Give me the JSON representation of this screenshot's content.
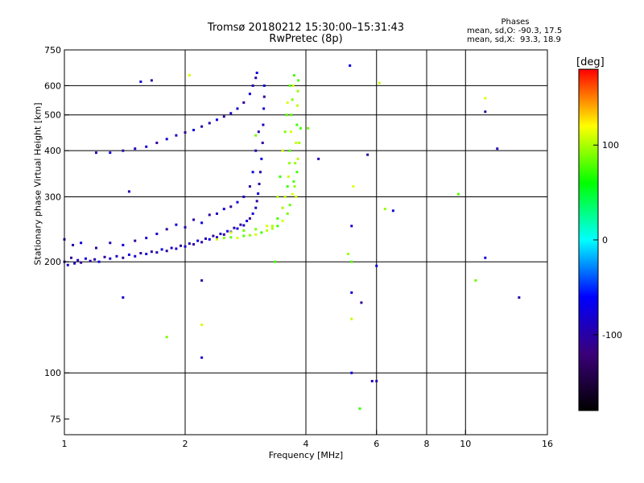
{
  "chart_data": {
    "type": "scatter",
    "title": "Tromsø 20180212 15:30:00–15:31:43",
    "subtitle": "RwPretec (8p)",
    "xlabel": "Frequency [MHz]",
    "ylabel": "Stationary phase Virtual Height [km]",
    "x_scale": "log",
    "y_scale": "log",
    "xlim": [
      1,
      16
    ],
    "ylim": [
      68,
      750
    ],
    "x_ticks": [
      1,
      2,
      4,
      6,
      8,
      10,
      16
    ],
    "y_ticks": [
      75,
      100,
      200,
      300,
      400,
      500,
      600,
      750
    ],
    "x_gridlines": [
      2,
      4,
      6,
      8,
      10
    ],
    "y_gridlines": [
      100,
      200,
      300,
      400,
      500,
      600
    ],
    "grid": true,
    "color_variable": "phase",
    "colorbar": {
      "label": "[deg]",
      "range": [
        -180,
        180
      ],
      "ticks": [
        100,
        0,
        -100
      ],
      "colors": [
        "#000000",
        "#3a007a",
        "#0000ff",
        "#00ffff",
        "#00ff00",
        "#ffff00",
        "#ff0000"
      ]
    },
    "phases_box": {
      "header": "Phases",
      "line_o": "mean, sd,O: -90.3, 17.5",
      "line_x": "mean, sd,X:  93.3, 18.9"
    },
    "series": [
      {
        "name": "O",
        "mean_phase": -90.3,
        "sd_phase": 17.5,
        "points": [
          [
            1.0,
            200
          ],
          [
            1.02,
            196
          ],
          [
            1.04,
            205
          ],
          [
            1.06,
            198
          ],
          [
            1.08,
            202
          ],
          [
            1.1,
            199
          ],
          [
            1.13,
            204
          ],
          [
            1.16,
            201
          ],
          [
            1.19,
            203
          ],
          [
            1.22,
            200
          ],
          [
            1.26,
            206
          ],
          [
            1.3,
            204
          ],
          [
            1.35,
            207
          ],
          [
            1.4,
            205
          ],
          [
            1.45,
            209
          ],
          [
            1.5,
            207
          ],
          [
            1.55,
            211
          ],
          [
            1.6,
            210
          ],
          [
            1.65,
            213
          ],
          [
            1.7,
            212
          ],
          [
            1.75,
            216
          ],
          [
            1.8,
            214
          ],
          [
            1.85,
            218
          ],
          [
            1.9,
            217
          ],
          [
            1.95,
            221
          ],
          [
            2.0,
            220
          ],
          [
            2.05,
            224
          ],
          [
            2.1,
            223
          ],
          [
            2.15,
            228
          ],
          [
            2.2,
            226
          ],
          [
            2.25,
            231
          ],
          [
            2.3,
            230
          ],
          [
            2.35,
            235
          ],
          [
            2.4,
            233
          ],
          [
            2.45,
            238
          ],
          [
            2.5,
            237
          ],
          [
            2.55,
            242
          ],
          [
            2.6,
            241
          ],
          [
            2.65,
            247
          ],
          [
            2.7,
            246
          ],
          [
            2.75,
            252
          ],
          [
            2.8,
            251
          ],
          [
            2.85,
            258
          ],
          [
            2.9,
            262
          ],
          [
            2.95,
            270
          ],
          [
            3.0,
            280
          ],
          [
            3.02,
            292
          ],
          [
            3.04,
            306
          ],
          [
            3.06,
            325
          ],
          [
            3.08,
            350
          ],
          [
            3.1,
            380
          ],
          [
            3.12,
            420
          ],
          [
            3.13,
            470
          ],
          [
            3.14,
            520
          ],
          [
            3.15,
            560
          ],
          [
            3.15,
            600
          ],
          [
            1.0,
            230
          ],
          [
            1.05,
            222
          ],
          [
            1.1,
            225
          ],
          [
            1.2,
            218
          ],
          [
            1.3,
            225
          ],
          [
            1.4,
            222
          ],
          [
            1.5,
            228
          ],
          [
            1.6,
            232
          ],
          [
            1.7,
            238
          ],
          [
            1.8,
            245
          ],
          [
            1.9,
            252
          ],
          [
            2.0,
            248
          ],
          [
            2.1,
            260
          ],
          [
            2.2,
            255
          ],
          [
            2.3,
            268
          ],
          [
            2.4,
            270
          ],
          [
            2.5,
            278
          ],
          [
            2.6,
            282
          ],
          [
            2.7,
            290
          ],
          [
            2.8,
            300
          ],
          [
            2.9,
            320
          ],
          [
            2.95,
            350
          ],
          [
            3.0,
            400
          ],
          [
            3.05,
            450
          ],
          [
            1.3,
            395
          ],
          [
            1.4,
            400
          ],
          [
            1.5,
            405
          ],
          [
            1.6,
            410
          ],
          [
            1.7,
            420
          ],
          [
            1.8,
            430
          ],
          [
            1.9,
            440
          ],
          [
            2.0,
            448
          ],
          [
            2.1,
            455
          ],
          [
            2.2,
            465
          ],
          [
            2.3,
            475
          ],
          [
            2.4,
            485
          ],
          [
            2.5,
            495
          ],
          [
            2.6,
            505
          ],
          [
            2.7,
            520
          ],
          [
            2.8,
            540
          ],
          [
            2.9,
            570
          ],
          [
            2.95,
            600
          ],
          [
            3.0,
            630
          ],
          [
            3.02,
            650
          ],
          [
            1.2,
            395
          ],
          [
            1.45,
            310
          ],
          [
            1.55,
            615
          ],
          [
            1.65,
            620
          ],
          [
            1.4,
            160
          ],
          [
            2.2,
            110
          ],
          [
            2.2,
            178
          ],
          [
            6.0,
            195
          ],
          [
            5.85,
            95
          ],
          [
            6.0,
            95
          ],
          [
            5.2,
            100
          ],
          [
            5.7,
            390
          ],
          [
            4.3,
            380
          ],
          [
            5.2,
            165
          ],
          [
            5.5,
            155
          ],
          [
            6.6,
            275
          ],
          [
            5.2,
            250
          ],
          [
            11.2,
            510
          ],
          [
            11.2,
            205
          ],
          [
            12.0,
            405
          ],
          [
            13.6,
            160
          ],
          [
            5.15,
            680
          ]
        ]
      },
      {
        "name": "X",
        "mean_phase": 93.3,
        "sd_phase": 18.9,
        "points": [
          [
            2.4,
            230
          ],
          [
            2.5,
            232
          ],
          [
            2.6,
            233
          ],
          [
            2.7,
            232
          ],
          [
            2.8,
            235
          ],
          [
            2.9,
            236
          ],
          [
            3.0,
            237
          ],
          [
            3.1,
            240
          ],
          [
            3.2,
            243
          ],
          [
            3.3,
            246
          ],
          [
            3.4,
            250
          ],
          [
            3.5,
            258
          ],
          [
            3.6,
            270
          ],
          [
            3.65,
            285
          ],
          [
            3.7,
            305
          ],
          [
            3.73,
            330
          ],
          [
            3.76,
            370
          ],
          [
            3.78,
            420
          ],
          [
            3.8,
            470
          ],
          [
            3.81,
            530
          ],
          [
            3.82,
            580
          ],
          [
            3.83,
            620
          ],
          [
            2.6,
            240
          ],
          [
            2.8,
            243
          ],
          [
            3.0,
            245
          ],
          [
            3.2,
            250
          ],
          [
            3.4,
            262
          ],
          [
            3.5,
            280
          ],
          [
            3.55,
            300
          ],
          [
            3.6,
            320
          ],
          [
            3.62,
            340
          ],
          [
            3.64,
            370
          ],
          [
            3.65,
            400
          ],
          [
            3.67,
            450
          ],
          [
            3.68,
            500
          ],
          [
            3.7,
            550
          ],
          [
            3.72,
            600
          ],
          [
            3.74,
            640
          ],
          [
            3.3,
            250
          ],
          [
            3.4,
            300
          ],
          [
            3.45,
            340
          ],
          [
            3.5,
            400
          ],
          [
            3.55,
            450
          ],
          [
            3.58,
            500
          ],
          [
            3.6,
            540
          ],
          [
            3.65,
            600
          ],
          [
            3.75,
            320
          ],
          [
            3.78,
            300
          ],
          [
            3.8,
            350
          ],
          [
            3.82,
            380
          ],
          [
            3.85,
            420
          ],
          [
            3.88,
            460
          ],
          [
            2.05,
            640
          ],
          [
            3.0,
            440
          ],
          [
            4.05,
            460
          ],
          [
            5.25,
            320
          ],
          [
            5.2,
            200
          ],
          [
            5.1,
            210
          ],
          [
            5.2,
            140
          ],
          [
            5.45,
            80
          ],
          [
            6.1,
            610
          ],
          [
            6.3,
            278
          ],
          [
            9.6,
            305
          ],
          [
            11.2,
            555
          ],
          [
            10.6,
            178
          ],
          [
            1.8,
            125
          ],
          [
            2.2,
            135
          ],
          [
            3.35,
            200
          ]
        ]
      }
    ]
  }
}
